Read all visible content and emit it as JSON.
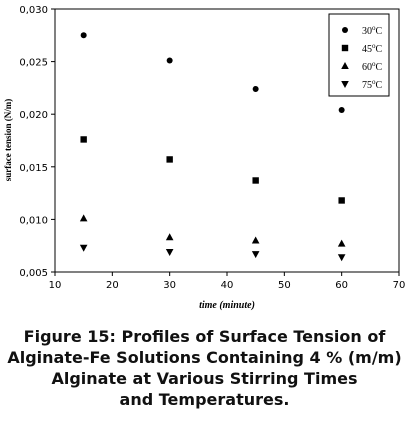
{
  "chart_data": {
    "type": "scatter",
    "xlabel": "time (minute)",
    "ylabel": "surface tension (N/m)",
    "xlim": [
      10,
      70
    ],
    "ylim": [
      0.005,
      0.03
    ],
    "x_ticks": [
      "10",
      "20",
      "30",
      "40",
      "50",
      "60",
      "70"
    ],
    "y_ticks": [
      "0,005",
      "0,010",
      "0,015",
      "0,020",
      "0,025",
      "0,030"
    ],
    "grid": false,
    "legend_position": "top-right",
    "series": [
      {
        "name": "30",
        "unit": "oC",
        "marker": "circle",
        "x": [
          15,
          30,
          45,
          60
        ],
        "y": [
          0.0275,
          0.0251,
          0.0224,
          0.0204
        ]
      },
      {
        "name": "45",
        "unit": "oC",
        "marker": "square",
        "x": [
          15,
          30,
          45,
          60
        ],
        "y": [
          0.0176,
          0.0157,
          0.0137,
          0.0118
        ]
      },
      {
        "name": "60",
        "unit": "oC",
        "marker": "triangle-up",
        "x": [
          15,
          30,
          45,
          60
        ],
        "y": [
          0.0101,
          0.0083,
          0.008,
          0.0077
        ]
      },
      {
        "name": "75",
        "unit": "oC",
        "marker": "triangle-down",
        "x": [
          15,
          30,
          45,
          60
        ],
        "y": [
          0.0073,
          0.0069,
          0.0067,
          0.0064
        ]
      }
    ]
  },
  "caption": {
    "lines": [
      "Figure 15: Profiles of Surface Tension of",
      "Alginate-Fe Solutions Containing 4 % (m/m)",
      "Alginate at Various Stirring Times",
      "and Temperatures."
    ]
  }
}
